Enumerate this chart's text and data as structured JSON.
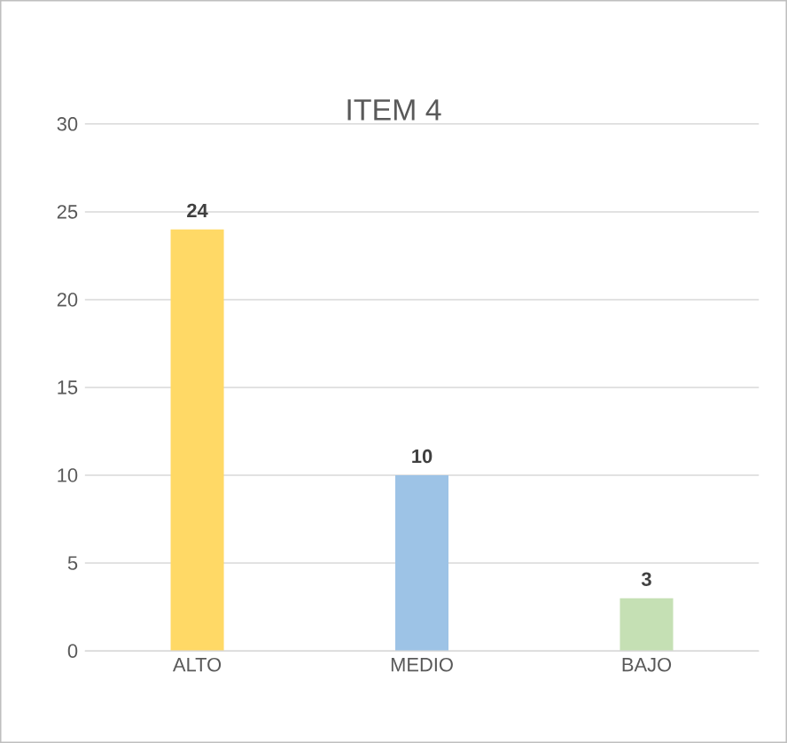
{
  "chart_data": {
    "type": "bar",
    "title": "ITEM 4",
    "categories": [
      "ALTO",
      "MEDIO",
      "BAJO"
    ],
    "values": [
      24,
      10,
      3
    ],
    "colors": [
      "#ffd966",
      "#9dc3e6",
      "#c5e0b4"
    ],
    "ylim": [
      0,
      30
    ],
    "yticks": [
      0,
      5,
      10,
      15,
      20,
      25,
      30
    ],
    "grid": "y",
    "data_labels": true
  }
}
